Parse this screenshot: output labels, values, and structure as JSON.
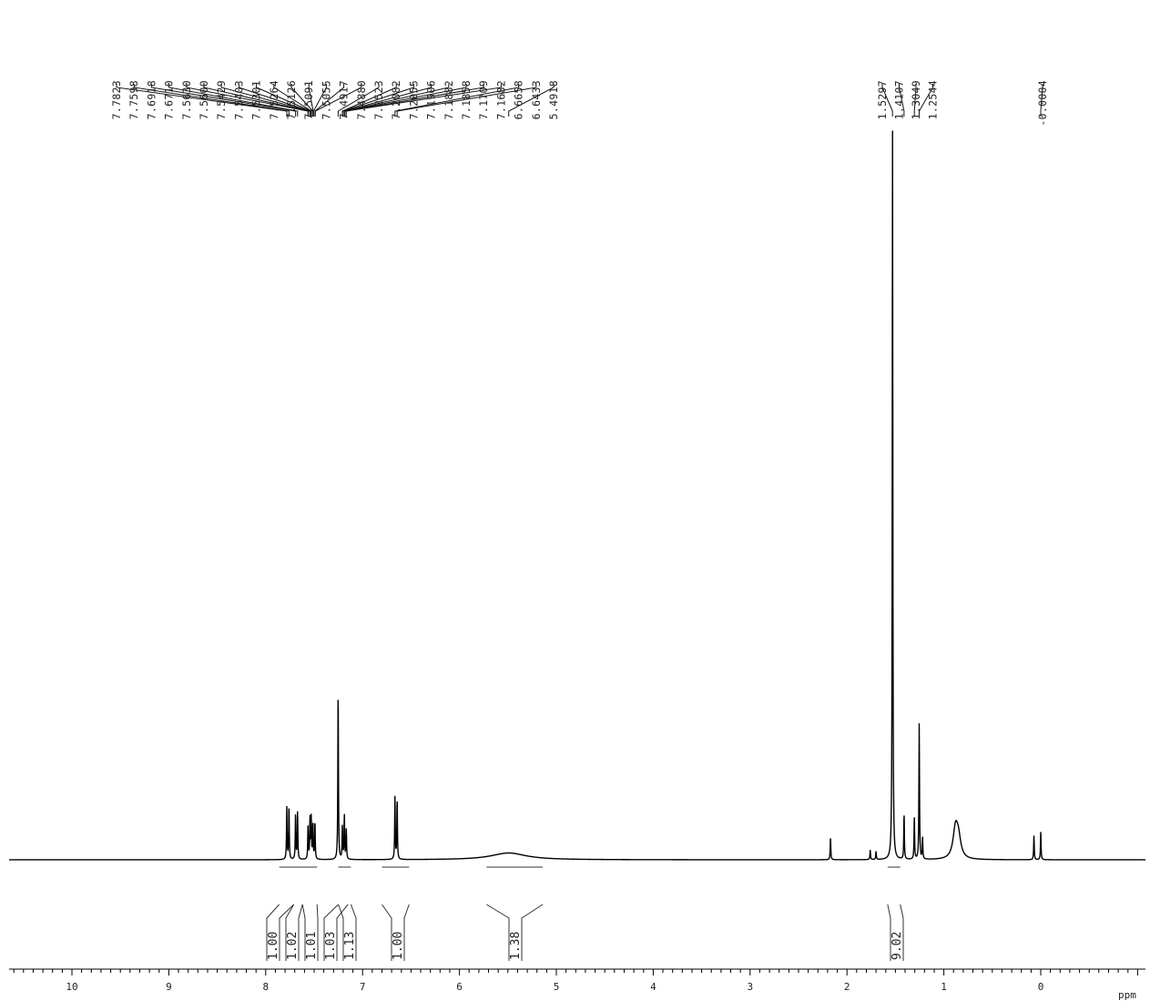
{
  "chart_data": {
    "type": "line",
    "title": "",
    "xlabel": "ppm",
    "ylabel": "",
    "xlim": [
      10.8,
      -1.08
    ],
    "x_reversed": true,
    "xticks": [
      "10",
      "9",
      "8",
      "7",
      "6",
      "5",
      "4",
      "3",
      "2",
      "1",
      "0"
    ],
    "grid": false,
    "legend": "none",
    "peak_labels": [
      {
        "text": "7.7823",
        "ppm": 7.7823
      },
      {
        "text": "7.7598",
        "ppm": 7.7598
      },
      {
        "text": "7.6918",
        "ppm": 7.6918
      },
      {
        "text": "7.6710",
        "ppm": 7.671
      },
      {
        "text": "7.5630",
        "ppm": 7.563
      },
      {
        "text": "7.5600",
        "ppm": 7.56
      },
      {
        "text": "7.5429",
        "ppm": 7.5429
      },
      {
        "text": "7.5403",
        "ppm": 7.5403
      },
      {
        "text": "7.5301",
        "ppm": 7.5301
      },
      {
        "text": "7.5264",
        "ppm": 7.5264
      },
      {
        "text": "7.5126",
        "ppm": 7.5126
      },
      {
        "text": "7.5091",
        "ppm": 7.5091
      },
      {
        "text": "7.5055",
        "ppm": 7.5055
      },
      {
        "text": "7.4917",
        "ppm": 7.4917
      },
      {
        "text": "7.4880",
        "ppm": 7.488
      },
      {
        "text": "7.2523",
        "ppm": 7.2523
      },
      {
        "text": "7.2082",
        "ppm": 7.2082
      },
      {
        "text": "7.2055",
        "ppm": 7.2055
      },
      {
        "text": "7.1906",
        "ppm": 7.1906
      },
      {
        "text": "7.1882",
        "ppm": 7.1882
      },
      {
        "text": "7.1858",
        "ppm": 7.1858
      },
      {
        "text": "7.1709",
        "ppm": 7.1709
      },
      {
        "text": "7.1682",
        "ppm": 7.1682
      },
      {
        "text": "6.6658",
        "ppm": 6.6658
      },
      {
        "text": "6.6433",
        "ppm": 6.6433
      },
      {
        "text": "5.4918",
        "ppm": 5.4918
      },
      {
        "text": "1.5297",
        "ppm": 1.5297
      },
      {
        "text": "1.4107",
        "ppm": 1.4107
      },
      {
        "text": "1.3049",
        "ppm": 1.3049
      },
      {
        "text": "1.2544",
        "ppm": 1.2544
      },
      {
        "text": "-0.0004",
        "ppm": -0.0004
      }
    ],
    "integrals": [
      {
        "value": "1.00",
        "from": 7.86,
        "to": 7.71
      },
      {
        "value": "1.02",
        "from": 7.71,
        "to": 7.62
      },
      {
        "value": "1.01",
        "from": 7.62,
        "to": 7.47
      },
      {
        "value": "1.03",
        "from": 7.25,
        "to": 7.15
      },
      {
        "value": "1.13",
        "from": 7.25,
        "to": 7.12
      },
      {
        "value": "1.00",
        "from": 6.8,
        "to": 6.52
      },
      {
        "value": "1.38",
        "from": 5.72,
        "to": 5.14
      },
      {
        "value": "9.02",
        "from": 1.58,
        "to": 1.45
      }
    ],
    "peaks": [
      {
        "ppm": 7.7823,
        "height": 0.193
      },
      {
        "ppm": 7.7598,
        "height": 0.197
      },
      {
        "ppm": 7.6918,
        "height": 0.17
      },
      {
        "ppm": 7.671,
        "height": 0.175
      },
      {
        "ppm": 7.563,
        "height": 0.12
      },
      {
        "ppm": 7.5429,
        "height": 0.15
      },
      {
        "ppm": 7.5301,
        "height": 0.152
      },
      {
        "ppm": 7.5126,
        "height": 0.13
      },
      {
        "ppm": 7.4917,
        "height": 0.14
      },
      {
        "ppm": 7.2523,
        "height": 0.63
      },
      {
        "ppm": 7.2082,
        "height": 0.12
      },
      {
        "ppm": 7.1882,
        "height": 0.165
      },
      {
        "ppm": 7.1682,
        "height": 0.11
      },
      {
        "ppm": 6.6658,
        "height": 0.228
      },
      {
        "ppm": 6.6433,
        "height": 0.222
      },
      {
        "ppm": 5.4918,
        "height": 0.025,
        "width": 0.22
      },
      {
        "ppm": 2.17,
        "height": 0.085
      },
      {
        "ppm": 1.76,
        "height": 0.035
      },
      {
        "ppm": 1.7,
        "height": 0.03
      },
      {
        "ppm": 1.5297,
        "height": 2.67
      },
      {
        "ppm": 1.4107,
        "height": 0.17
      },
      {
        "ppm": 1.3049,
        "height": 0.16
      },
      {
        "ppm": 1.2544,
        "height": 0.5
      },
      {
        "ppm": 1.22,
        "height": 0.08
      },
      {
        "ppm": 0.88,
        "height": 0.105,
        "width": 0.03
      },
      {
        "ppm": 0.85,
        "height": 0.07,
        "width": 0.03
      },
      {
        "ppm": 0.07,
        "height": 0.09
      },
      {
        "ppm": -0.0004,
        "height": 0.103
      }
    ]
  }
}
